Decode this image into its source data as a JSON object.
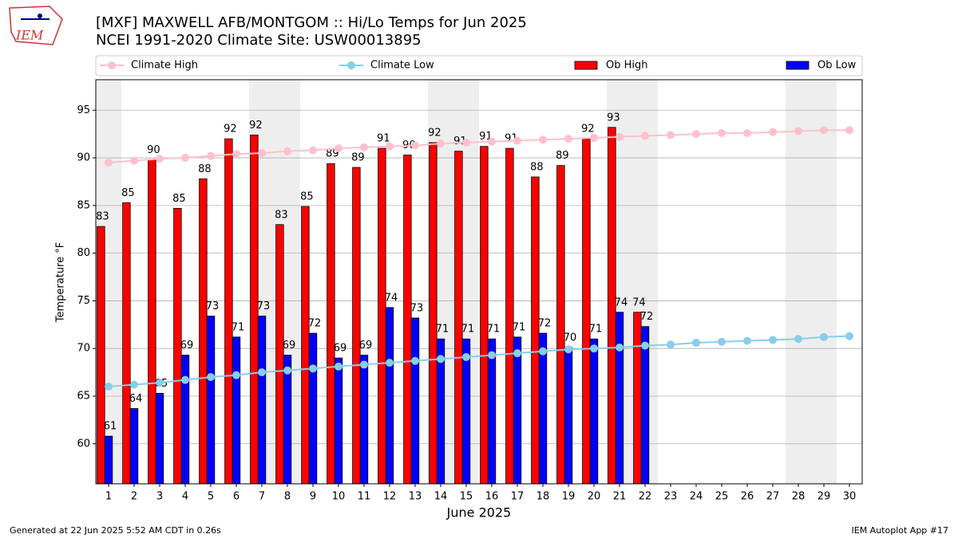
{
  "logo_text": "IEM",
  "footer_left": "Generated at 22 Jun 2025 5:52 AM CDT in 0.26s",
  "footer_right": "IEM Autoplot App #17",
  "chart_data": {
    "type": "bar",
    "title": "[MXF] MAXWELL AFB/MONTGOM :: Hi/Lo Temps for Jun 2025",
    "subtitle": "NCEI 1991-2020 Climate Site: USW00013895",
    "x_label": "June 2025",
    "y_label": "Temperature °F",
    "x": [
      1,
      2,
      3,
      4,
      5,
      6,
      7,
      8,
      9,
      10,
      11,
      12,
      13,
      14,
      15,
      16,
      17,
      18,
      19,
      20,
      21,
      22,
      23,
      24,
      25,
      26,
      27,
      28,
      29,
      30
    ],
    "xlim": [
      0.5,
      30.5
    ],
    "xticks": [
      1,
      2,
      3,
      4,
      5,
      6,
      7,
      8,
      9,
      10,
      11,
      12,
      13,
      14,
      15,
      16,
      17,
      18,
      19,
      20,
      21,
      22,
      23,
      24,
      25,
      26,
      27,
      28,
      29,
      30
    ],
    "ylim": [
      55.8,
      98.2
    ],
    "yticks": [
      60,
      65,
      70,
      75,
      80,
      85,
      90,
      95
    ],
    "grid": true,
    "legend": "top-outside",
    "series": [
      {
        "name": "Climate High",
        "type": "line",
        "color": "#ffc0cb",
        "values": [
          89.5,
          89.7,
          89.9,
          90.0,
          90.2,
          90.4,
          90.5,
          90.7,
          90.8,
          91.0,
          91.1,
          91.2,
          91.3,
          91.5,
          91.6,
          91.7,
          91.8,
          91.9,
          92.0,
          92.1,
          92.2,
          92.3,
          92.4,
          92.5,
          92.6,
          92.6,
          92.7,
          92.8,
          92.9,
          92.9
        ]
      },
      {
        "name": "Climate Low",
        "type": "line",
        "color": "#87ceeb",
        "values": [
          66.0,
          66.2,
          66.4,
          66.7,
          67.0,
          67.2,
          67.5,
          67.7,
          67.9,
          68.1,
          68.3,
          68.5,
          68.7,
          68.9,
          69.1,
          69.3,
          69.5,
          69.7,
          69.9,
          70.0,
          70.1,
          70.3,
          70.4,
          70.6,
          70.7,
          70.8,
          70.9,
          71.0,
          71.2,
          71.3
        ]
      },
      {
        "name": "Ob High",
        "type": "bar",
        "color": "#ff0000",
        "values": [
          82.8,
          85.3,
          89.8,
          84.7,
          87.8,
          92.0,
          92.4,
          83.0,
          84.9,
          89.4,
          89.0,
          91.0,
          90.3,
          91.6,
          90.7,
          91.2,
          91.0,
          88.0,
          89.2,
          92.0,
          93.2,
          73.8,
          null,
          null,
          null,
          null,
          null,
          null,
          null,
          null
        ],
        "value_labels": [
          "83",
          "85",
          "90",
          "85",
          "88",
          "92",
          "92",
          "83",
          "85",
          "89",
          "89",
          "91",
          "90",
          "92",
          "91",
          "91",
          "91",
          "88",
          "89",
          "92",
          "93",
          "74",
          null,
          null,
          null,
          null,
          null,
          null,
          null,
          null
        ]
      },
      {
        "name": "Ob Low",
        "type": "bar",
        "color": "#0000ff",
        "values": [
          60.8,
          63.7,
          65.3,
          69.3,
          73.4,
          71.2,
          73.4,
          69.3,
          71.6,
          69.0,
          69.3,
          74.3,
          73.2,
          71.0,
          71.0,
          71.0,
          71.2,
          71.6,
          70.1,
          71.0,
          73.8,
          72.3,
          null,
          null,
          null,
          null,
          null,
          null,
          null,
          null
        ],
        "value_labels": [
          "61",
          "64",
          "65",
          "69",
          "73",
          "71",
          "73",
          "69",
          "72",
          "69",
          "69",
          "74",
          "73",
          "71",
          "71",
          "71",
          "71",
          "72",
          "70",
          "71",
          "74",
          "72",
          null,
          null,
          null,
          null,
          null,
          null,
          null,
          null
        ]
      }
    ]
  }
}
